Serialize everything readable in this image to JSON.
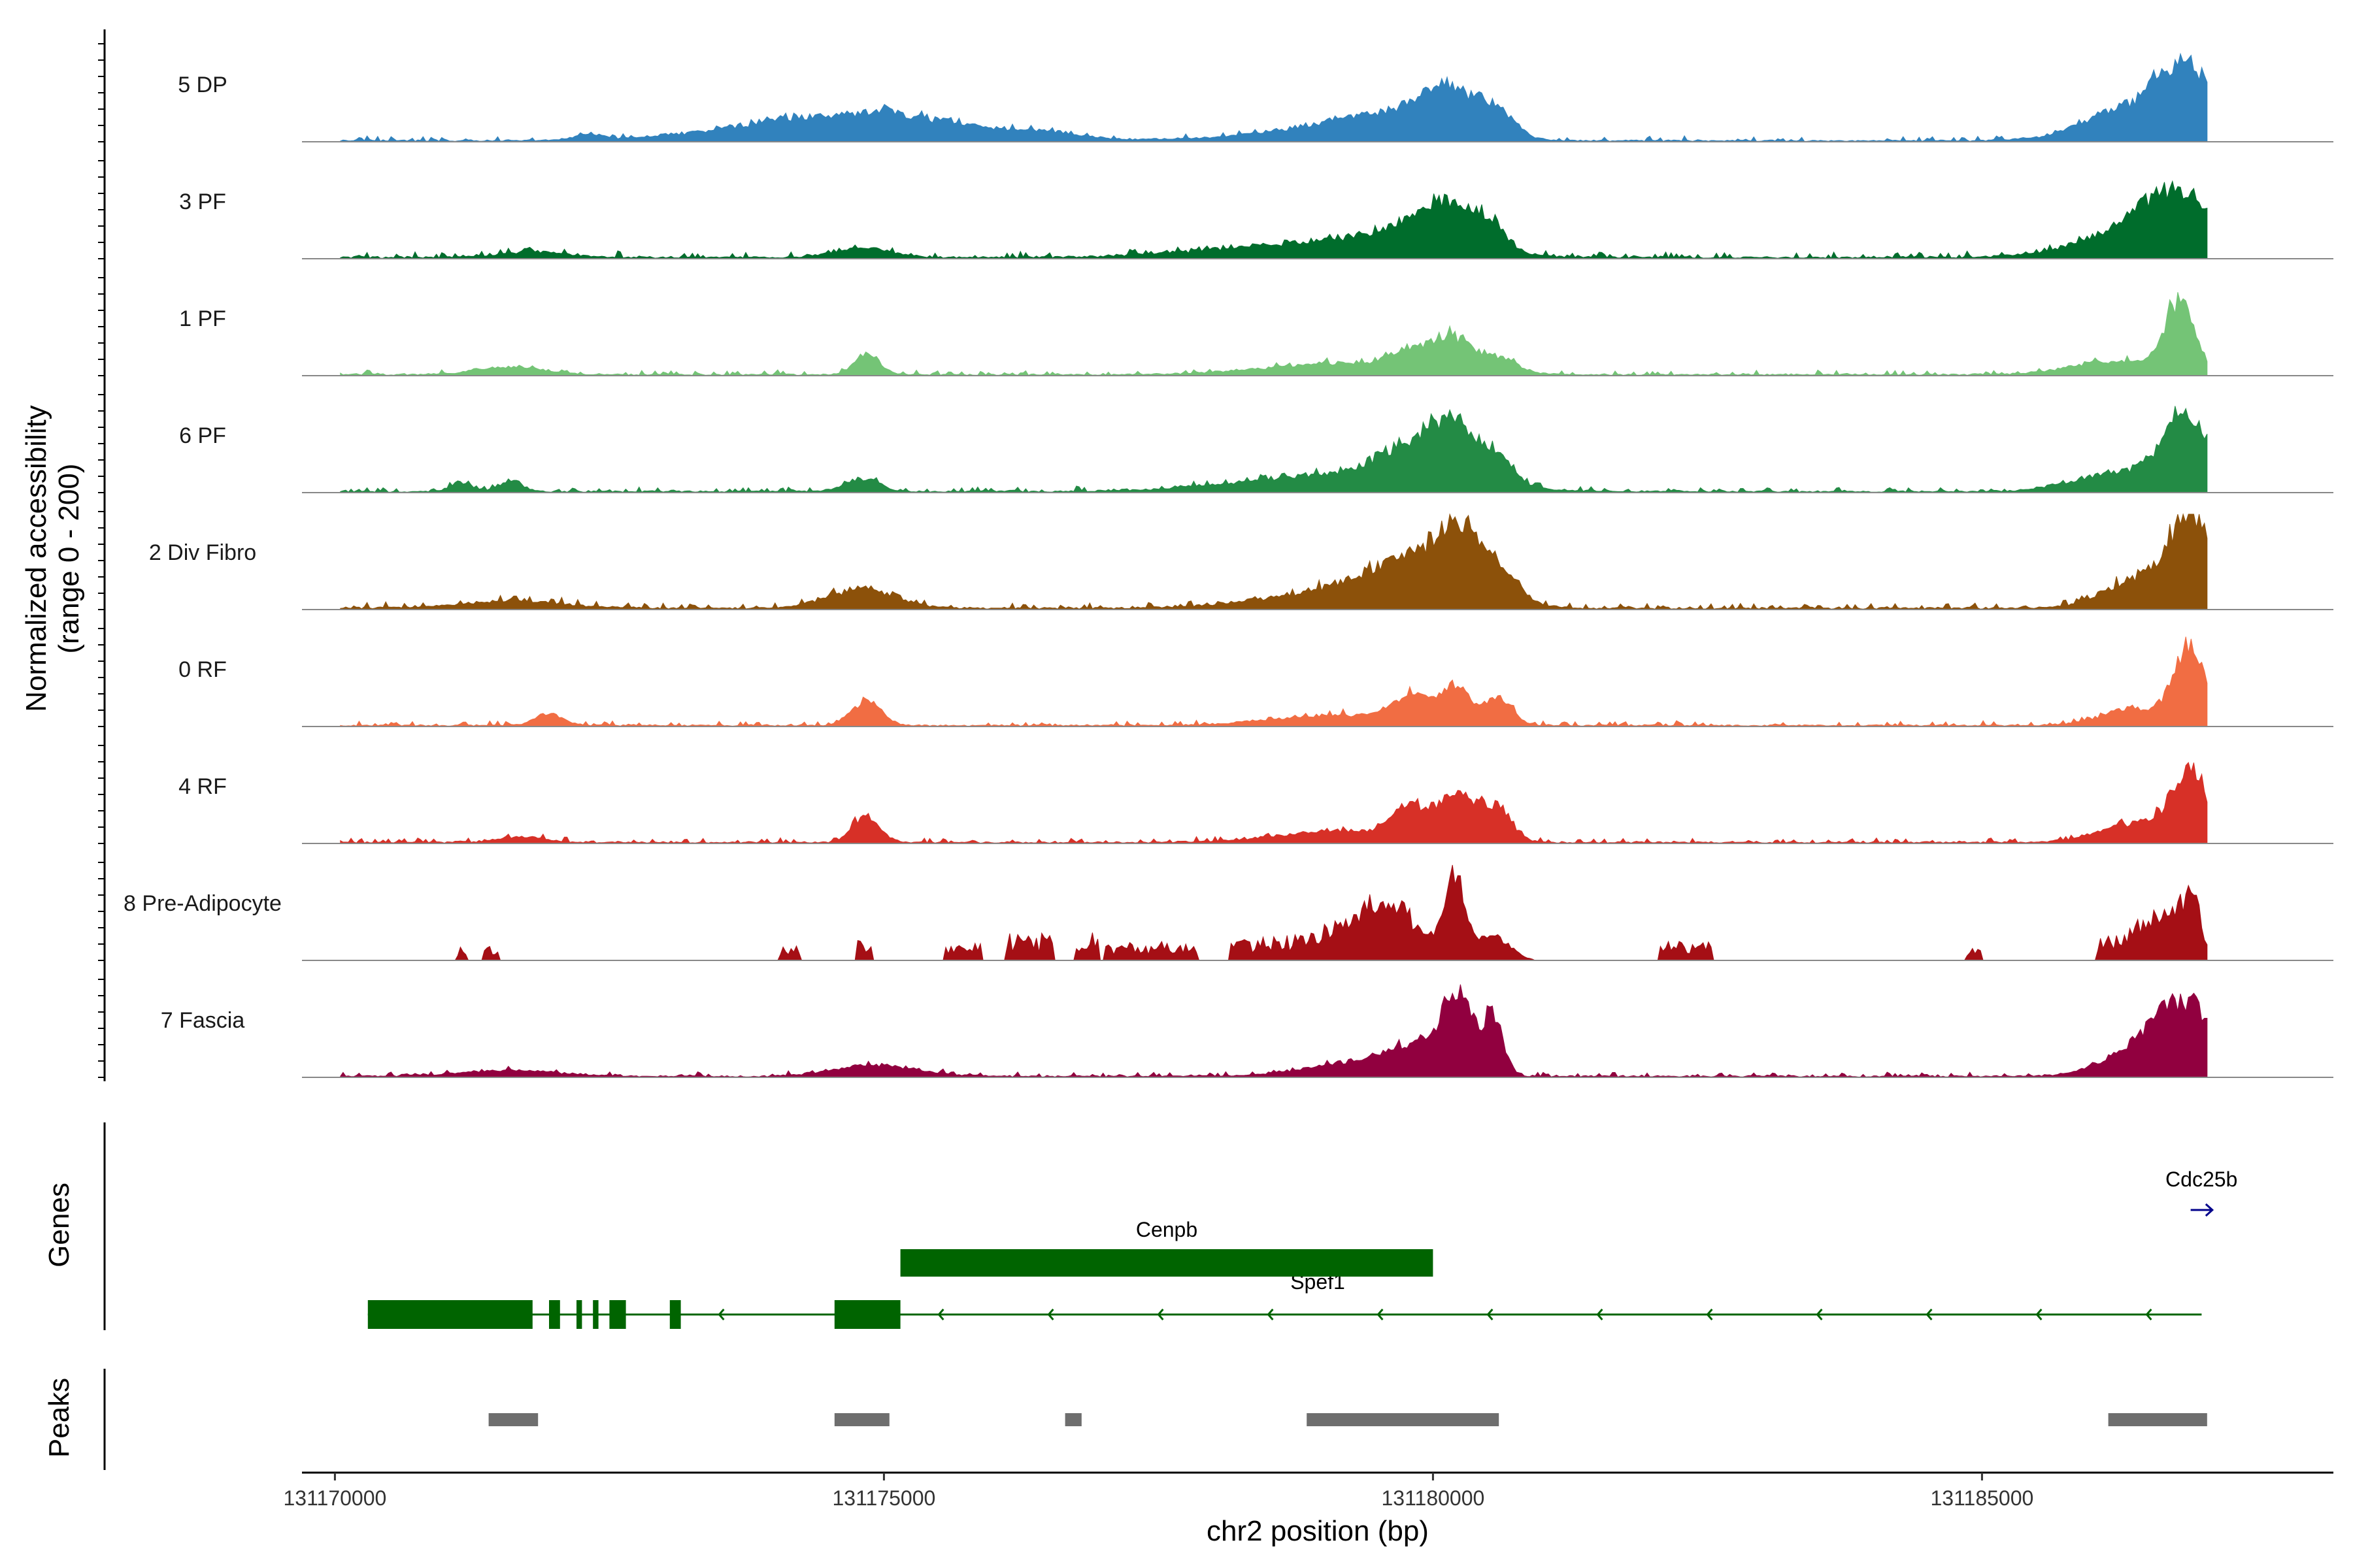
{
  "chart_data": {
    "type": "area",
    "genome_browser": true,
    "y_axis_title_line1": "Normalized accessibility",
    "y_axis_title_line2": "(range 0 - 200)",
    "y_range": [
      0,
      200
    ],
    "x_axis_title": "chr2 position (bp)",
    "xlim": [
      131169700,
      131188200
    ],
    "x_ticks": [
      131170000,
      131175000,
      131180000,
      131185000
    ],
    "tick_labels": [
      "131170000",
      "131175000",
      "131180000",
      "131185000"
    ],
    "signal_start": 131170050,
    "signal_end": 131187050,
    "genes_title": "Genes",
    "peaks_title": "Peaks",
    "tracks": [
      {
        "name": "5 DP",
        "color": "#3182bd",
        "noise": 0.012,
        "continuous": true,
        "peaks": [
          [
            131172300,
            120,
            3
          ],
          [
            131174770,
            1000,
            14
          ],
          [
            131175000,
            150,
            3
          ],
          [
            131176500,
            200,
            2.5
          ],
          [
            131179000,
            700,
            5
          ],
          [
            131179600,
            500,
            10
          ],
          [
            131180150,
            280,
            22
          ],
          [
            131180600,
            160,
            10
          ],
          [
            131186300,
            400,
            15
          ],
          [
            131186850,
            260,
            36
          ]
        ]
      },
      {
        "name": "3 PF",
        "color": "#006d2c",
        "noise": 0.015,
        "continuous": true,
        "peaks": [
          [
            131171800,
            300,
            3
          ],
          [
            131174800,
            250,
            5
          ],
          [
            131179000,
            900,
            8
          ],
          [
            131179800,
            350,
            10
          ],
          [
            131180150,
            250,
            20
          ],
          [
            131180550,
            140,
            11
          ],
          [
            131186300,
            500,
            10
          ],
          [
            131186800,
            350,
            30
          ]
        ]
      },
      {
        "name": "1 PF",
        "color": "#74c476",
        "noise": 0.012,
        "continuous": true,
        "peaks": [
          [
            131171600,
            300,
            4
          ],
          [
            131174850,
            110,
            11
          ],
          [
            131179200,
            700,
            6
          ],
          [
            131179800,
            200,
            9
          ],
          [
            131180200,
            180,
            16
          ],
          [
            131180600,
            170,
            7
          ],
          [
            131186200,
            400,
            7
          ],
          [
            131186800,
            140,
            36
          ]
        ]
      },
      {
        "name": "6 PF",
        "color": "#238b45",
        "noise": 0.012,
        "continuous": true,
        "peaks": [
          [
            131171150,
            100,
            5
          ],
          [
            131171600,
            100,
            6
          ],
          [
            131174800,
            150,
            7
          ],
          [
            131179200,
            900,
            9
          ],
          [
            131179800,
            300,
            16
          ],
          [
            131180200,
            220,
            26
          ],
          [
            131180600,
            150,
            13
          ],
          [
            131186250,
            400,
            10
          ],
          [
            131186850,
            200,
            40
          ]
        ]
      },
      {
        "name": "2 Div Fibro",
        "color": "#8c510a",
        "noise": 0.015,
        "continuous": true,
        "peaks": [
          [
            131171600,
            500,
            3.5
          ],
          [
            131174800,
            300,
            10
          ],
          [
            131179200,
            700,
            9
          ],
          [
            131179800,
            400,
            18
          ],
          [
            131180250,
            230,
            30
          ],
          [
            131180600,
            200,
            12
          ],
          [
            131186400,
            300,
            14
          ],
          [
            131186900,
            200,
            46
          ]
        ]
      },
      {
        "name": "0 RF",
        "color": "#f16d43",
        "noise": 0.012,
        "continuous": true,
        "peaks": [
          [
            131171950,
            130,
            6
          ],
          [
            131174840,
            130,
            13
          ],
          [
            131179200,
            600,
            5.5
          ],
          [
            131179800,
            150,
            13
          ],
          [
            131180200,
            140,
            20
          ],
          [
            131180600,
            120,
            14
          ],
          [
            131186400,
            300,
            9
          ],
          [
            131186900,
            140,
            40
          ]
        ]
      },
      {
        "name": "4 RF",
        "color": "#d73027",
        "noise": 0.012,
        "continuous": true,
        "peaks": [
          [
            131171700,
            200,
            3
          ],
          [
            131174840,
            120,
            14
          ],
          [
            131179200,
            600,
            6
          ],
          [
            131179800,
            160,
            15
          ],
          [
            131180250,
            190,
            23
          ],
          [
            131180600,
            130,
            14
          ],
          [
            131186450,
            350,
            10
          ],
          [
            131186900,
            160,
            35
          ]
        ]
      },
      {
        "name": "8 Pre-Adipocyte",
        "color": "#a50f15",
        "noise": 0.0,
        "continuous": false,
        "blocks": [
          [
            131171100,
            131171200,
            0.06
          ],
          [
            131171350,
            131171500,
            0.06
          ],
          [
            131174050,
            131174250,
            0.06
          ],
          [
            131174750,
            131174900,
            0.08
          ],
          [
            131175550,
            131175900,
            0.08
          ],
          [
            131176100,
            131176550,
            0.12
          ],
          [
            131176750,
            131176950,
            0.12
          ],
          [
            131177000,
            131177850,
            0.08
          ],
          [
            131178150,
            131179800,
            0.1
          ],
          [
            131182050,
            131182550,
            0.08
          ],
          [
            131184850,
            131185000,
            0.06
          ],
          [
            131186050,
            131187000,
            0.1
          ]
        ],
        "peaks": [
          [
            131179600,
            350,
            22
          ],
          [
            131180200,
            90,
            39
          ],
          [
            131180550,
            150,
            12
          ],
          [
            131186600,
            200,
            14
          ],
          [
            131186900,
            100,
            22
          ]
        ]
      },
      {
        "name": "7 Fascia",
        "color": "#91003f",
        "noise": 0.012,
        "continuous": true,
        "peaks": [
          [
            131171600,
            450,
            3
          ],
          [
            131174800,
            300,
            5
          ],
          [
            131175200,
            300,
            2.5
          ],
          [
            131179400,
            500,
            8
          ],
          [
            131179900,
            250,
            12
          ],
          [
            131180230,
            140,
            36
          ],
          [
            131180550,
            90,
            30
          ],
          [
            131186300,
            300,
            8
          ],
          [
            131186850,
            300,
            38
          ]
        ]
      }
    ],
    "genes": [
      {
        "name": "Spef1",
        "strand": "-",
        "start": 131170300,
        "end": 131187000,
        "color": "#006400",
        "exons": [
          [
            131170300,
            131171800
          ],
          [
            131171950,
            131172050
          ],
          [
            131172200,
            131172250
          ],
          [
            131172350,
            131172400
          ],
          [
            131172500,
            131172650
          ],
          [
            131173050,
            131173150
          ],
          [
            131174550,
            131175150
          ]
        ]
      },
      {
        "name": "Cenpb",
        "strand": "+",
        "start": 131175150,
        "end": 131180000,
        "color": "#006400",
        "exons": [
          [
            131175150,
            131180000
          ]
        ]
      },
      {
        "name": "Cdc25b",
        "strand": "+",
        "start": 131186900,
        "end": 131187050,
        "color": "#00008b",
        "exons": []
      }
    ],
    "peak_regions": [
      [
        131171400,
        131171850
      ],
      [
        131174550,
        131175050
      ],
      [
        131176650,
        131176800
      ],
      [
        131178850,
        131180600
      ],
      [
        131186150,
        131187050
      ]
    ]
  }
}
